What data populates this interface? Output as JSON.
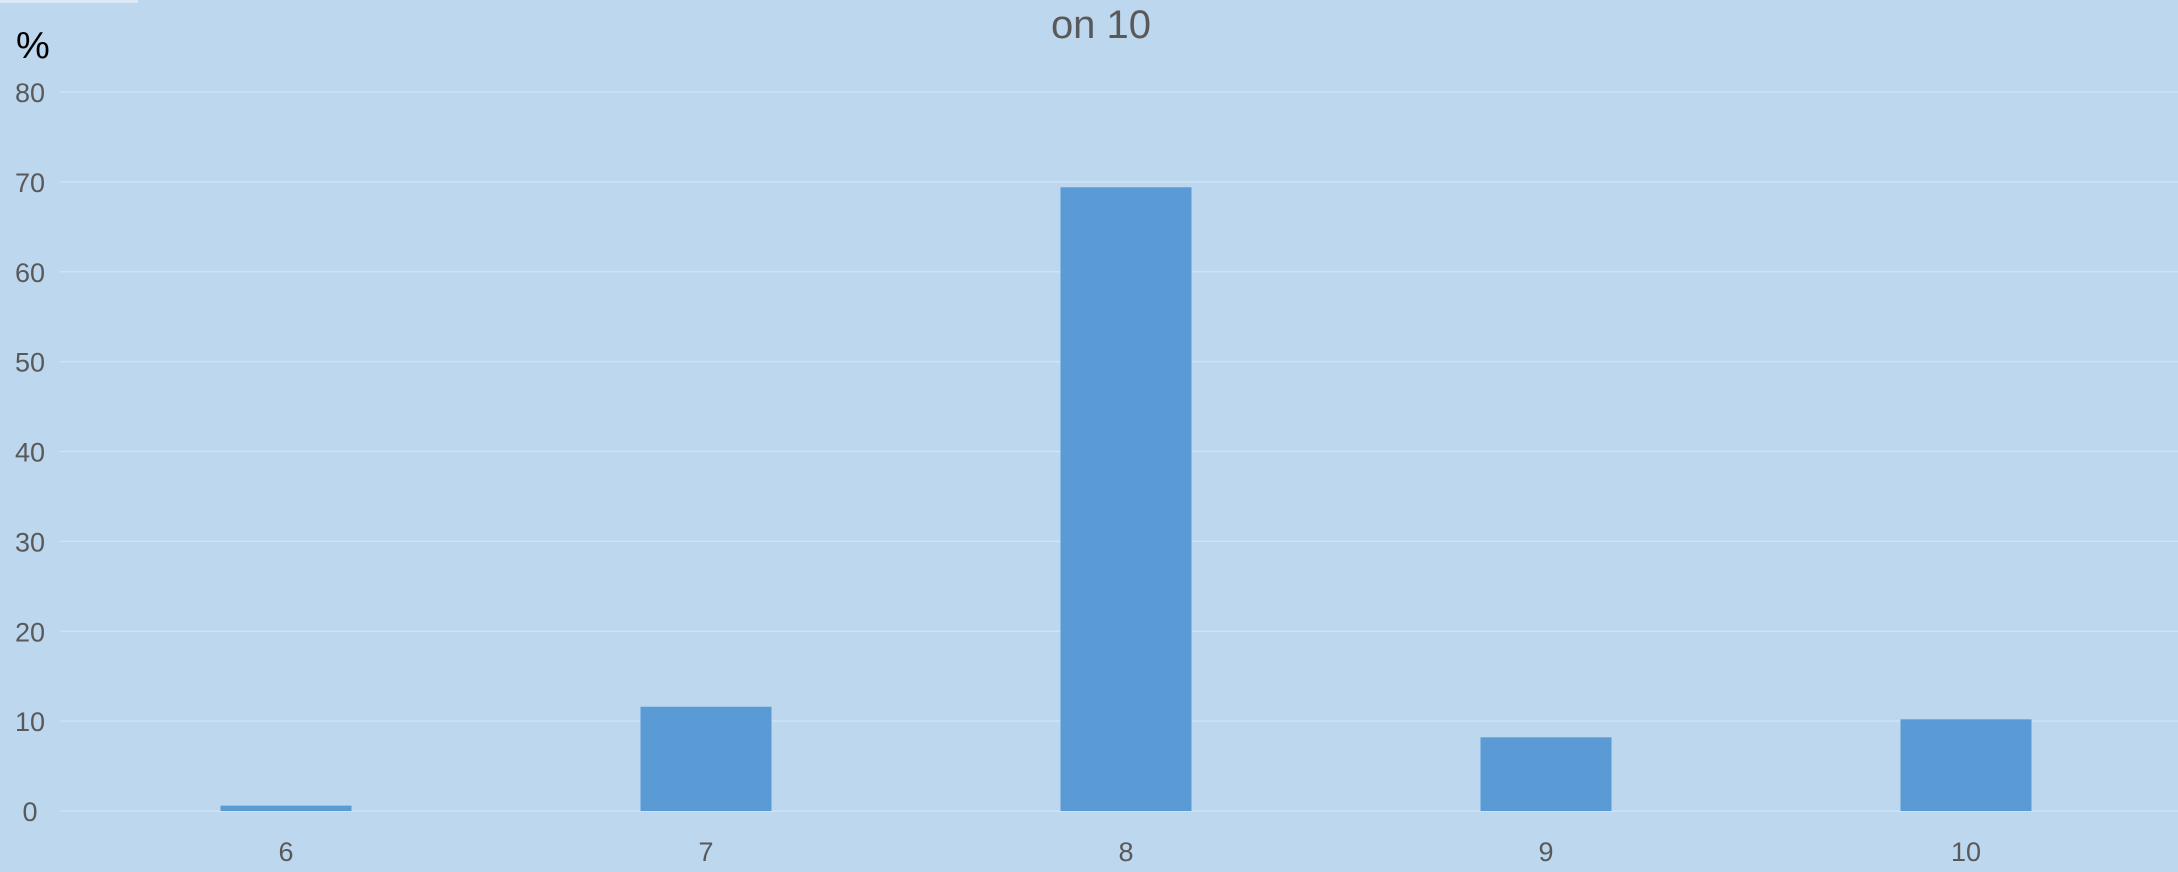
{
  "chart_data": {
    "type": "bar",
    "title": "on 10",
    "ylabel": "%",
    "xlabel": "",
    "categories": [
      "6",
      "7",
      "8",
      "9",
      "10"
    ],
    "values": [
      0.6,
      11.6,
      69.4,
      8.2,
      10.2
    ],
    "ylim": [
      0,
      80
    ],
    "yticks": [
      0,
      10,
      20,
      30,
      40,
      50,
      60,
      70,
      80
    ],
    "grid": true,
    "legend": "none",
    "colors": {
      "background": "#BDD7EE",
      "bar": "#5B9BD5",
      "gridline": "#D0E2F3",
      "text": "#595959"
    }
  }
}
